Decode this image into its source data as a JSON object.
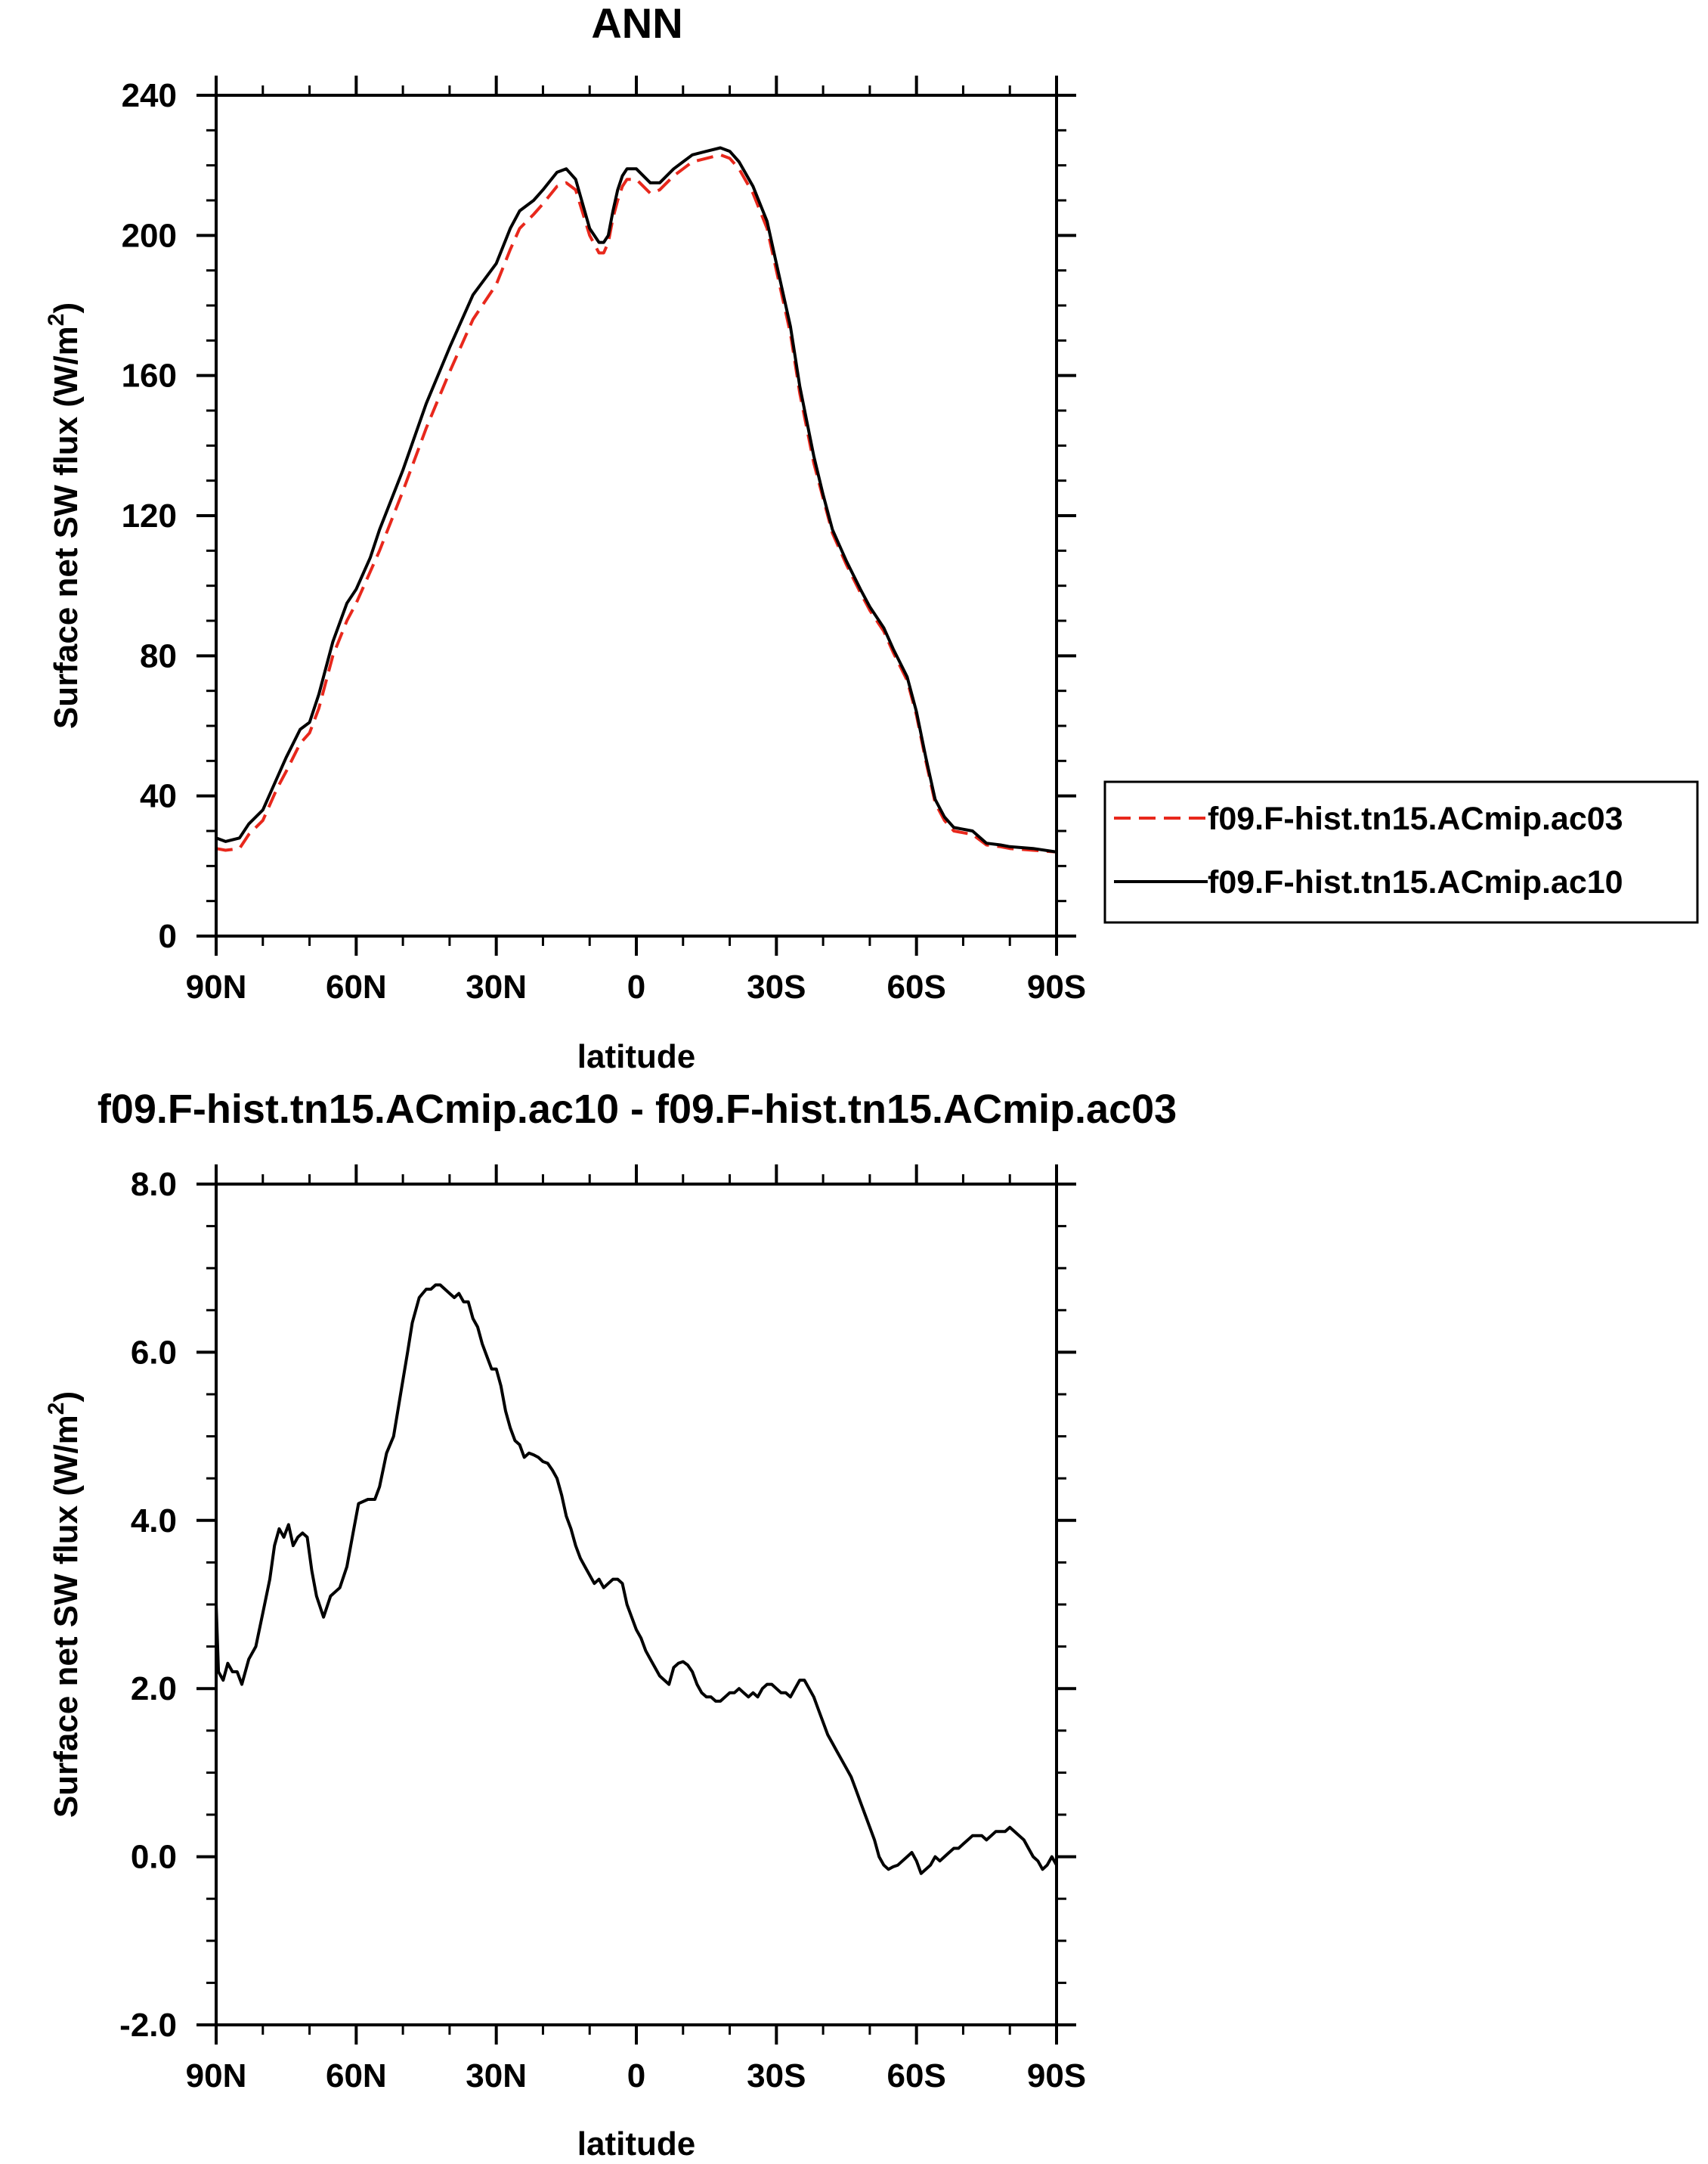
{
  "chart_data": [
    {
      "type": "line",
      "title": "ANN",
      "xlabel": "latitude",
      "ylabel": "Surface net SW flux (W/m",
      "ylabel_sup": "2",
      "ylabel_close": ")",
      "xlim": [
        90,
        -90
      ],
      "ylim": [
        0,
        240
      ],
      "x_ticks": [
        90,
        60,
        30,
        0,
        -30,
        -60,
        -90
      ],
      "x_tick_labels": [
        "90N",
        "60N",
        "30N",
        "0",
        "30S",
        "60S",
        "90S"
      ],
      "y_ticks": [
        0,
        40,
        80,
        120,
        160,
        200,
        240
      ],
      "y_tick_labels": [
        "0",
        "40",
        "80",
        "120",
        "160",
        "200",
        "240"
      ],
      "legend": {
        "placement": "right",
        "entries": [
          "f09.F-hist.tn15.ACmip.ac03",
          "f09.F-hist.tn15.ACmip.ac10"
        ]
      },
      "series": [
        {
          "name": "f09.F-hist.tn15.ACmip.ac03",
          "color": "#e8281c",
          "dash": "dashed",
          "x": [
            90,
            88,
            85,
            83,
            80,
            77,
            75,
            72,
            70,
            68,
            65,
            62,
            60,
            57,
            55,
            50,
            45,
            40,
            35,
            30,
            27,
            25,
            22,
            20,
            17,
            15,
            13,
            10,
            8,
            7,
            6,
            5,
            4,
            3,
            2,
            0,
            -3,
            -5,
            -8,
            -10,
            -12,
            -15,
            -18,
            -20,
            -22,
            -25,
            -28,
            -30,
            -33,
            -35,
            -38,
            -40,
            -42,
            -45,
            -48,
            -50,
            -53,
            -55,
            -58,
            -60,
            -62,
            -64,
            -66,
            -68,
            -70,
            -72,
            -75,
            -78,
            -80,
            -85,
            -90
          ],
          "values": [
            25,
            24.5,
            25,
            29,
            33,
            42,
            47,
            55,
            58,
            65,
            80,
            90,
            95,
            104,
            110,
            127,
            145,
            161,
            176,
            186,
            196,
            202,
            206,
            209,
            214,
            215,
            213,
            200,
            195,
            195,
            198,
            205,
            210,
            214,
            216,
            216,
            212,
            213,
            217,
            219,
            221,
            222,
            223,
            222,
            219,
            212,
            202,
            190,
            172,
            155,
            135,
            125,
            115,
            106,
            98,
            93,
            87,
            81,
            73,
            63,
            50,
            38,
            33,
            30,
            29.5,
            29,
            26,
            25.5,
            25,
            24.5,
            24
          ]
        },
        {
          "name": "f09.F-hist.tn15.ACmip.ac10",
          "color": "#000000",
          "dash": "solid",
          "x": [
            90,
            88,
            85,
            83,
            80,
            77,
            75,
            72,
            70,
            68,
            65,
            62,
            60,
            57,
            55,
            50,
            45,
            40,
            35,
            30,
            27,
            25,
            22,
            20,
            17,
            15,
            13,
            10,
            8,
            7,
            6,
            5,
            4,
            3,
            2,
            0,
            -3,
            -5,
            -8,
            -10,
            -12,
            -15,
            -18,
            -20,
            -22,
            -25,
            -28,
            -30,
            -33,
            -35,
            -38,
            -40,
            -42,
            -45,
            -48,
            -50,
            -53,
            -55,
            -58,
            -60,
            -62,
            -64,
            -66,
            -68,
            -70,
            -72,
            -75,
            -78,
            -80,
            -85,
            -90
          ],
          "values": [
            28,
            27,
            28,
            32,
            36,
            45,
            51,
            59,
            61,
            69,
            84,
            95,
            99,
            108,
            116,
            133,
            152,
            168,
            183,
            192,
            202,
            207,
            210,
            213,
            218,
            219,
            216,
            202,
            198,
            198,
            200,
            207,
            213,
            217,
            219,
            219,
            215,
            215,
            219,
            221,
            223,
            224,
            225,
            224,
            221,
            214,
            204,
            192,
            174,
            157,
            137,
            126,
            116,
            107,
            99,
            94,
            88,
            82,
            74,
            64,
            51,
            39,
            34,
            31,
            30.5,
            30,
            26.5,
            26,
            25.5,
            25,
            24
          ]
        }
      ]
    },
    {
      "type": "line",
      "title": "f09.F-hist.tn15.ACmip.ac10 - f09.F-hist.tn15.ACmip.ac03",
      "xlabel": "latitude",
      "ylabel": "Surface net SW flux (W/m",
      "ylabel_sup": "2",
      "ylabel_close": ")",
      "xlim": [
        90,
        -90
      ],
      "ylim": [
        -2.0,
        8.0
      ],
      "x_ticks": [
        90,
        60,
        30,
        0,
        -30,
        -60,
        -90
      ],
      "x_tick_labels": [
        "90N",
        "60N",
        "30N",
        "0",
        "30S",
        "60S",
        "90S"
      ],
      "y_ticks": [
        -2.0,
        0.0,
        2.0,
        4.0,
        6.0,
        8.0
      ],
      "y_tick_labels": [
        "-2.0",
        "0.0",
        "2.0",
        "4.0",
        "6.0",
        "8.0"
      ],
      "series": [
        {
          "name": "f09.F-hist.tn15.ACmip.ac10 - f09.F-hist.tn15.ACmip.ac03",
          "color": "#000000",
          "dash": "solid",
          "x": [
            90,
            89.5,
            88.5,
            87.5,
            86.5,
            85.5,
            84.5,
            83,
            81.5,
            80,
            78.5,
            77.5,
            76.5,
            75.5,
            74.5,
            73.5,
            72.5,
            71.5,
            70.5,
            69.5,
            68.5,
            67,
            65.5,
            63.5,
            62,
            60.5,
            59.5,
            57.5,
            56,
            55,
            53.5,
            52,
            50.5,
            49,
            48,
            46.5,
            45,
            44,
            43,
            42,
            41,
            40,
            39,
            38,
            37,
            36,
            35,
            34,
            33,
            32,
            31,
            30,
            29,
            28,
            27,
            26,
            25,
            24,
            23,
            22,
            21,
            20,
            19,
            18,
            17,
            16,
            15,
            14,
            13,
            12,
            11,
            10,
            9,
            8,
            7,
            6,
            5,
            4,
            3,
            2,
            1,
            0,
            -1,
            -2,
            -3,
            -4,
            -5,
            -6,
            -7,
            -8,
            -9,
            -10,
            -11,
            -12,
            -13,
            -14,
            -15,
            -16,
            -17,
            -18,
            -19,
            -20,
            -21,
            -22,
            -23,
            -24,
            -25,
            -26,
            -27,
            -28,
            -29,
            -30,
            -31,
            -32,
            -33,
            -34,
            -35,
            -36,
            -37,
            -38,
            -39,
            -40,
            -41,
            -42,
            -43,
            -44,
            -45,
            -46,
            -47,
            -48,
            -49,
            -50,
            -51,
            -52,
            -53,
            -54,
            -55,
            -56,
            -57,
            -58,
            -59,
            -60,
            -61,
            -62,
            -63,
            -64,
            -65,
            -66,
            -67,
            -68,
            -69,
            -70,
            -71,
            -72,
            -73,
            -74,
            -75,
            -76,
            -77,
            -78,
            -79,
            -80,
            -81,
            -82,
            -83,
            -84,
            -85,
            -86,
            -87,
            -88,
            -89,
            -90
          ],
          "values": [
            3.0,
            2.2,
            2.1,
            2.3,
            2.2,
            2.2,
            2.05,
            2.35,
            2.5,
            2.9,
            3.3,
            3.7,
            3.9,
            3.8,
            3.95,
            3.7,
            3.8,
            3.85,
            3.8,
            3.4,
            3.1,
            2.85,
            3.1,
            3.2,
            3.45,
            3.9,
            4.2,
            4.25,
            4.25,
            4.4,
            4.8,
            5.0,
            5.5,
            6.0,
            6.35,
            6.65,
            6.75,
            6.75,
            6.8,
            6.8,
            6.75,
            6.7,
            6.65,
            6.7,
            6.6,
            6.6,
            6.4,
            6.3,
            6.1,
            5.95,
            5.8,
            5.8,
            5.6,
            5.3,
            5.1,
            4.95,
            4.9,
            4.75,
            4.8,
            4.78,
            4.75,
            4.7,
            4.68,
            4.6,
            4.5,
            4.3,
            4.05,
            3.9,
            3.7,
            3.55,
            3.45,
            3.35,
            3.25,
            3.3,
            3.2,
            3.25,
            3.3,
            3.3,
            3.25,
            3.0,
            2.85,
            2.7,
            2.6,
            2.45,
            2.35,
            2.25,
            2.15,
            2.1,
            2.05,
            2.25,
            2.3,
            2.32,
            2.28,
            2.2,
            2.05,
            1.95,
            1.9,
            1.9,
            1.85,
            1.85,
            1.9,
            1.95,
            1.95,
            2.0,
            1.95,
            1.9,
            1.95,
            1.9,
            2.0,
            2.05,
            2.05,
            2.0,
            1.95,
            1.95,
            1.9,
            2.0,
            2.1,
            2.1,
            2.0,
            1.9,
            1.75,
            1.6,
            1.45,
            1.35,
            1.25,
            1.15,
            1.05,
            0.95,
            0.8,
            0.65,
            0.5,
            0.35,
            0.2,
            0.0,
            -0.1,
            -0.15,
            -0.12,
            -0.1,
            -0.05,
            0.0,
            0.05,
            -0.05,
            -0.2,
            -0.15,
            -0.1,
            0.0,
            -0.05,
            0.0,
            0.05,
            0.1,
            0.1,
            0.15,
            0.2,
            0.25,
            0.25,
            0.25,
            0.2,
            0.25,
            0.3,
            0.3,
            0.3,
            0.35,
            0.3,
            0.25,
            0.2,
            0.1,
            0.0,
            -0.05,
            -0.15,
            -0.1,
            0.0,
            -0.1
          ]
        }
      ]
    }
  ]
}
